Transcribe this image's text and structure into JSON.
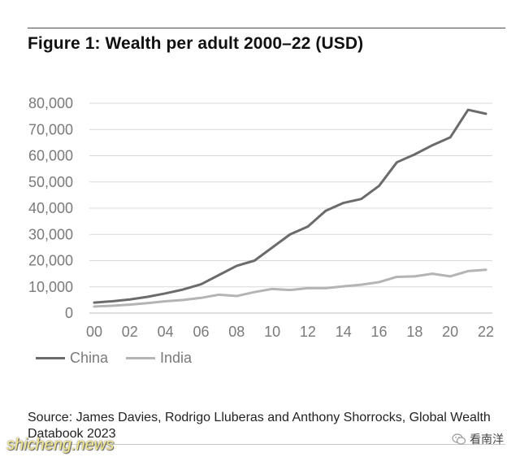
{
  "title": "Figure 1: Wealth per adult 2000–22 (USD)",
  "source_note": "Source: James Davies, Rodrigo Lluberas and Anthony Shorrocks, Global Wealth Databook 2023",
  "watermarks": {
    "left": "shicheng.news",
    "right": "看南洋"
  },
  "icons": {
    "watermark_icon": "wechat-icon"
  },
  "chart_data": {
    "type": "line",
    "title": "Figure 1: Wealth per adult 2000–22 (USD)",
    "xlabel": "",
    "ylabel": "",
    "x": [
      0,
      1,
      2,
      3,
      4,
      5,
      6,
      7,
      8,
      9,
      10,
      11,
      12,
      13,
      14,
      15,
      16,
      17,
      18,
      19,
      20,
      21,
      22
    ],
    "xtick_labels": [
      "00",
      "02",
      "04",
      "06",
      "08",
      "10",
      "12",
      "14",
      "16",
      "18",
      "20",
      "22"
    ],
    "xtick_values": [
      0,
      2,
      4,
      6,
      8,
      10,
      12,
      14,
      16,
      18,
      20,
      22
    ],
    "ylim": [
      0,
      80000
    ],
    "yticks": [
      0,
      10000,
      20000,
      30000,
      40000,
      50000,
      60000,
      70000,
      80000
    ],
    "ytick_labels": [
      "0",
      "10,000",
      "20,000",
      "30,000",
      "40,000",
      "50,000",
      "60,000",
      "70,000",
      "80,000"
    ],
    "grid": "horizontal",
    "legend_position": "bottom-left",
    "series": [
      {
        "name": "China",
        "color": "#6b6b6b",
        "values": [
          4000,
          4500,
          5200,
          6200,
          7500,
          9000,
          11000,
          14500,
          18000,
          20000,
          25000,
          30000,
          33000,
          39000,
          42000,
          43500,
          48500,
          57500,
          60500,
          64000,
          67000,
          77500,
          76000
        ]
      },
      {
        "name": "India",
        "color": "#b4b4b4",
        "values": [
          2500,
          2800,
          3200,
          3800,
          4500,
          5000,
          5800,
          7000,
          6500,
          8000,
          9200,
          8800,
          9500,
          9500,
          10200,
          10800,
          11800,
          13800,
          14000,
          15000,
          14000,
          16000,
          16500
        ]
      }
    ]
  }
}
